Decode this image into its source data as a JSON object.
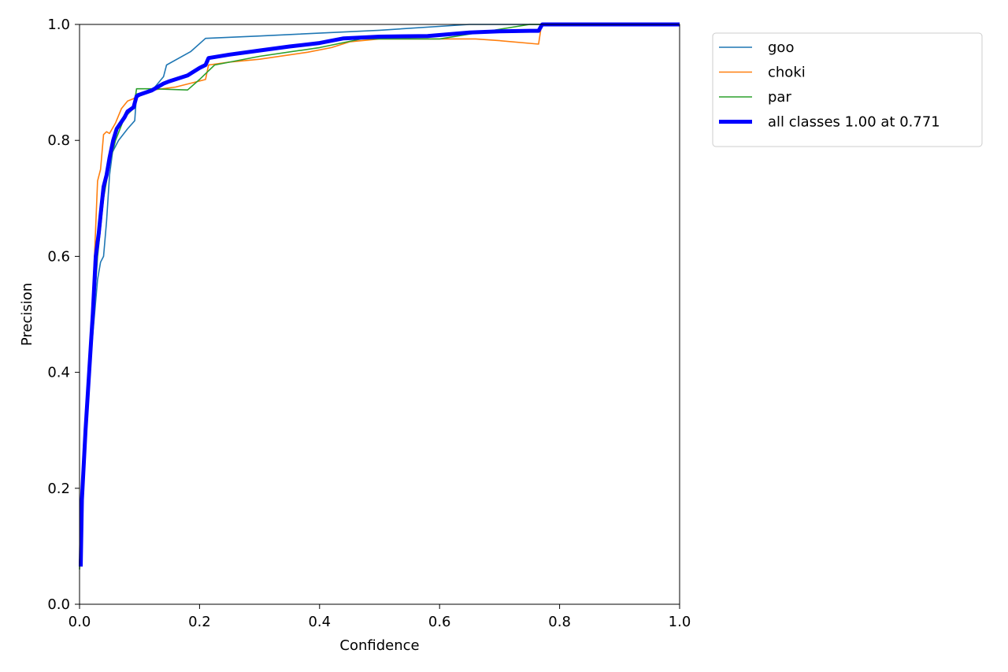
{
  "chart_data": {
    "type": "line",
    "title": "",
    "xlabel": "Confidence",
    "ylabel": "Precision",
    "xlim": [
      0,
      1
    ],
    "ylim": [
      0,
      1
    ],
    "xticks": [
      "0.0",
      "0.2",
      "0.4",
      "0.6",
      "0.8",
      "1.0"
    ],
    "yticks": [
      "0.0",
      "0.2",
      "0.4",
      "0.6",
      "0.8",
      "1.0"
    ],
    "grid": false,
    "legend_position": "outside-top-right",
    "series": [
      {
        "name": "goo",
        "color": "#1f77b4",
        "thickness": "thin",
        "points": [
          [
            0.0,
            0.07
          ],
          [
            0.005,
            0.2
          ],
          [
            0.012,
            0.33
          ],
          [
            0.02,
            0.44
          ],
          [
            0.03,
            0.56
          ],
          [
            0.035,
            0.59
          ],
          [
            0.04,
            0.6
          ],
          [
            0.045,
            0.66
          ],
          [
            0.05,
            0.74
          ],
          [
            0.055,
            0.78
          ],
          [
            0.065,
            0.8
          ],
          [
            0.08,
            0.82
          ],
          [
            0.092,
            0.834
          ],
          [
            0.095,
            0.88
          ],
          [
            0.12,
            0.885
          ],
          [
            0.14,
            0.91
          ],
          [
            0.145,
            0.93
          ],
          [
            0.185,
            0.953
          ],
          [
            0.21,
            0.976
          ],
          [
            0.3,
            0.98
          ],
          [
            0.5,
            0.99
          ],
          [
            0.65,
            1.0
          ],
          [
            1.0,
            1.0
          ]
        ]
      },
      {
        "name": "choki",
        "color": "#ff7f0e",
        "thickness": "thin",
        "points": [
          [
            0.0,
            0.07
          ],
          [
            0.01,
            0.3
          ],
          [
            0.02,
            0.48
          ],
          [
            0.025,
            0.6
          ],
          [
            0.03,
            0.73
          ],
          [
            0.035,
            0.75
          ],
          [
            0.04,
            0.81
          ],
          [
            0.045,
            0.815
          ],
          [
            0.05,
            0.812
          ],
          [
            0.06,
            0.83
          ],
          [
            0.07,
            0.855
          ],
          [
            0.08,
            0.868
          ],
          [
            0.09,
            0.872
          ],
          [
            0.1,
            0.88
          ],
          [
            0.13,
            0.888
          ],
          [
            0.16,
            0.892
          ],
          [
            0.21,
            0.905
          ],
          [
            0.215,
            0.93
          ],
          [
            0.25,
            0.935
          ],
          [
            0.3,
            0.94
          ],
          [
            0.38,
            0.952
          ],
          [
            0.42,
            0.96
          ],
          [
            0.45,
            0.97
          ],
          [
            0.5,
            0.975
          ],
          [
            0.6,
            0.975
          ],
          [
            0.66,
            0.975
          ],
          [
            0.7,
            0.972
          ],
          [
            0.765,
            0.966
          ],
          [
            0.77,
            1.0
          ],
          [
            1.0,
            1.0
          ]
        ]
      },
      {
        "name": "par",
        "color": "#2ca02c",
        "thickness": "thin",
        "points": [
          [
            0.0,
            0.06
          ],
          [
            0.01,
            0.3
          ],
          [
            0.02,
            0.45
          ],
          [
            0.03,
            0.6
          ],
          [
            0.04,
            0.7
          ],
          [
            0.05,
            0.76
          ],
          [
            0.06,
            0.8
          ],
          [
            0.075,
            0.84
          ],
          [
            0.09,
            0.855
          ],
          [
            0.095,
            0.889
          ],
          [
            0.12,
            0.889
          ],
          [
            0.18,
            0.887
          ],
          [
            0.2,
            0.905
          ],
          [
            0.225,
            0.93
          ],
          [
            0.3,
            0.945
          ],
          [
            0.4,
            0.96
          ],
          [
            0.47,
            0.975
          ],
          [
            0.6,
            0.975
          ],
          [
            0.75,
            1.0
          ],
          [
            1.0,
            1.0
          ]
        ]
      },
      {
        "name": "all classes 1.00 at 0.771",
        "color": "#0000ff",
        "thickness": "thick",
        "points": [
          [
            0.002,
            0.065
          ],
          [
            0.004,
            0.18
          ],
          [
            0.01,
            0.3
          ],
          [
            0.016,
            0.4
          ],
          [
            0.022,
            0.5
          ],
          [
            0.027,
            0.6
          ],
          [
            0.032,
            0.64
          ],
          [
            0.036,
            0.68
          ],
          [
            0.04,
            0.72
          ],
          [
            0.045,
            0.74
          ],
          [
            0.05,
            0.77
          ],
          [
            0.056,
            0.8
          ],
          [
            0.062,
            0.82
          ],
          [
            0.075,
            0.84
          ],
          [
            0.08,
            0.85
          ],
          [
            0.09,
            0.857
          ],
          [
            0.095,
            0.876
          ],
          [
            0.1,
            0.879
          ],
          [
            0.12,
            0.886
          ],
          [
            0.14,
            0.898
          ],
          [
            0.15,
            0.902
          ],
          [
            0.18,
            0.912
          ],
          [
            0.2,
            0.925
          ],
          [
            0.21,
            0.93
          ],
          [
            0.215,
            0.942
          ],
          [
            0.25,
            0.948
          ],
          [
            0.3,
            0.955
          ],
          [
            0.35,
            0.962
          ],
          [
            0.4,
            0.968
          ],
          [
            0.44,
            0.976
          ],
          [
            0.5,
            0.979
          ],
          [
            0.58,
            0.98
          ],
          [
            0.65,
            0.986
          ],
          [
            0.7,
            0.988
          ],
          [
            0.75,
            0.989
          ],
          [
            0.765,
            0.989
          ],
          [
            0.771,
            1.0
          ],
          [
            1.0,
            1.0
          ]
        ]
      }
    ]
  }
}
